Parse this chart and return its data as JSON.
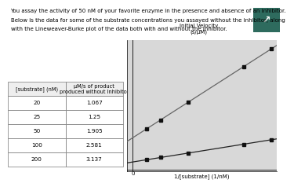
{
  "substrate_nM": [
    20,
    25,
    50,
    100,
    200
  ],
  "velocity_uM_per_s": [
    1.067,
    1.25,
    1.905,
    2.581,
    3.137
  ],
  "table_header1": "[substrate] (nM)",
  "table_header2": "μM/s of product\nproduced without Inhibitor",
  "xlabel": "1/[substrate] (1/nM)",
  "ylabel": "Initial Velocity\n(s/μM)",
  "paragraph_line1": "You assay the activity of 50 nM of your favorite enzyme in the presence and absence of an inhibitor.",
  "paragraph_line2": "Below is the data for some of the substrate concentrations you assayed without the inhibitor, along",
  "paragraph_line3": "with the Lineweaver-Burke plot of the data both with and without the inhibitor.",
  "line_color_no_inh": "#222222",
  "line_color_inh": "#666666",
  "grid_color": "#bbbbbb",
  "bg_color": "#ffffff",
  "plot_bg": "#d8d8d8",
  "marker": "s",
  "marker_color": "#111111",
  "corner_box_color": "#2e6b5e",
  "corner_symbol": "↗",
  "slope_inh_factor": 4.0
}
